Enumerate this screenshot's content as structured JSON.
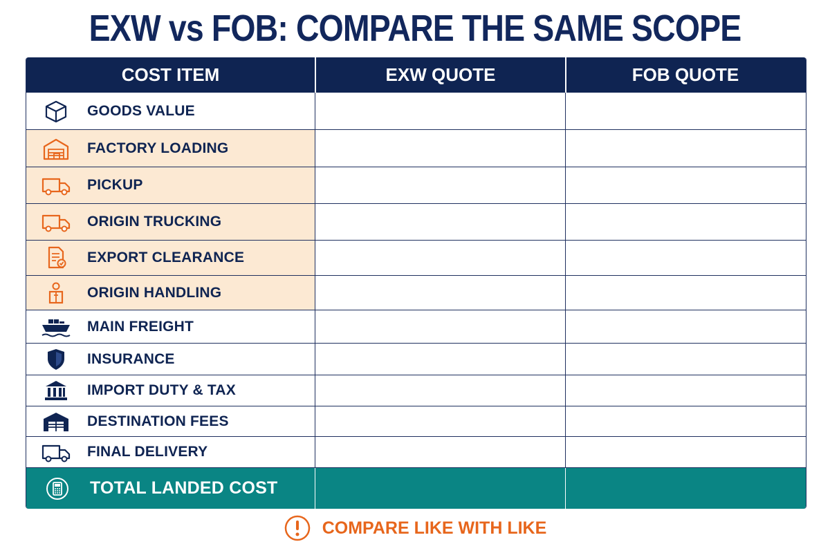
{
  "title": "EXW vs FOB: COMPARE THE SAME SCOPE",
  "headers": [
    "COST ITEM",
    "EXW QUOTE",
    "FOB QUOTE"
  ],
  "rows": [
    {
      "label": "GOODS VALUE",
      "icon": "box-icon",
      "highlight": false
    },
    {
      "label": "FACTORY LOADING",
      "icon": "warehouse-icon",
      "highlight": true
    },
    {
      "label": "PICKUP",
      "icon": "truck-icon",
      "highlight": true
    },
    {
      "label": "ORIGIN TRUCKING",
      "icon": "truck-icon",
      "highlight": true
    },
    {
      "label": "EXPORT CLEARANCE",
      "icon": "document-check-icon",
      "highlight": true
    },
    {
      "label": "ORIGIN HANDLING",
      "icon": "worker-box-icon",
      "highlight": true
    },
    {
      "label": "MAIN FREIGHT",
      "icon": "ship-icon",
      "highlight": false
    },
    {
      "label": "INSURANCE",
      "icon": "shield-icon",
      "highlight": false
    },
    {
      "label": "IMPORT DUTY & TAX",
      "icon": "bank-icon",
      "highlight": false
    },
    {
      "label": "DESTINATION FEES",
      "icon": "warehouse-icon",
      "highlight": false
    },
    {
      "label": "FINAL DELIVERY",
      "icon": "truck-icon",
      "highlight": false
    }
  ],
  "total": {
    "label": "TOTAL LANDED COST",
    "icon": "calculator-icon"
  },
  "footer": {
    "text": "COMPARE LIKE WITH LIKE",
    "icon": "exclamation-circle-icon"
  },
  "colors": {
    "navy": "#0f2452",
    "orange": "#e7661c",
    "highlight_bg": "#fce9d3",
    "teal": "#0a8584"
  }
}
